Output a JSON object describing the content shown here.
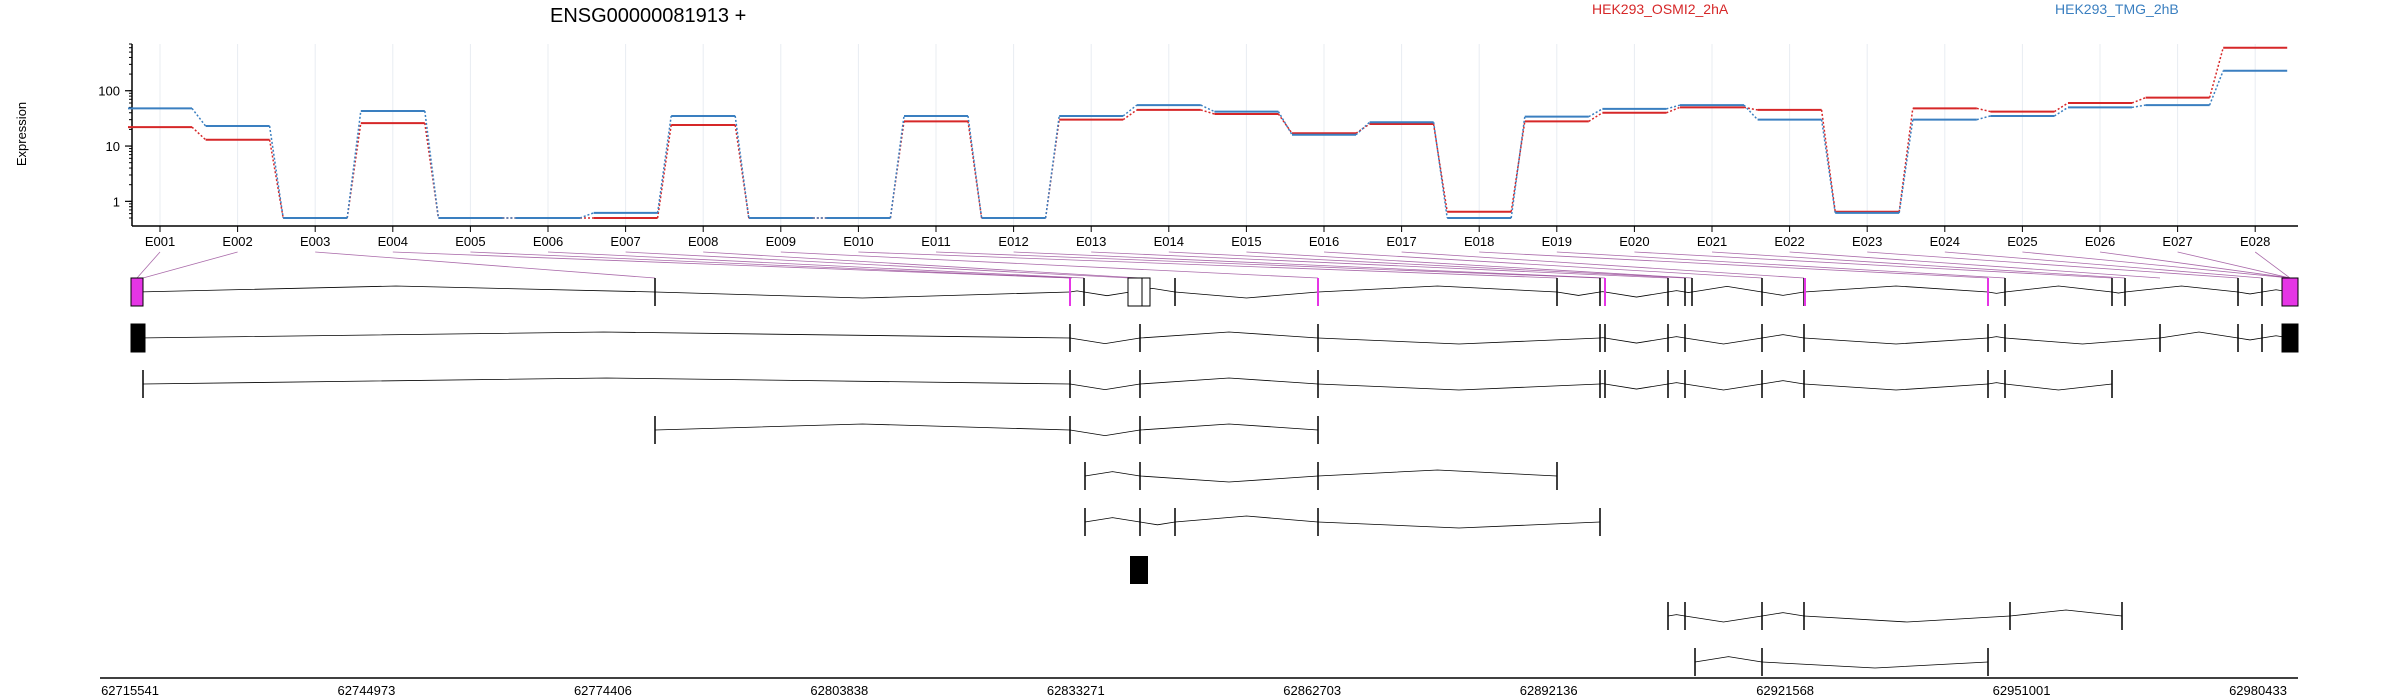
{
  "chart_data": {
    "type": "line",
    "title": "ENSG00000081913 +",
    "ylabel": "Expression",
    "yscale": "log",
    "ylim": [
      0.5,
      700
    ],
    "yticks": [
      {
        "value": 1,
        "label": "1"
      },
      {
        "value": 10,
        "label": "10"
      },
      {
        "value": 100,
        "label": "100"
      }
    ],
    "categories": [
      "E001",
      "E002",
      "E003",
      "E004",
      "E005",
      "E006",
      "E007",
      "E008",
      "E009",
      "E010",
      "E011",
      "E012",
      "E013",
      "E014",
      "E015",
      "E016",
      "E017",
      "E018",
      "E019",
      "E020",
      "E021",
      "E022",
      "E023",
      "E024",
      "E025",
      "E026",
      "E027",
      "E028"
    ],
    "grid": true,
    "legend_position": "top-right",
    "series": [
      {
        "name": "HEK293_OSMI2_2hA",
        "color": "#d62728",
        "values": [
          22,
          13,
          0.5,
          26,
          0.5,
          0.5,
          0.5,
          24,
          0.5,
          0.5,
          28,
          0.5,
          30,
          45,
          38,
          17,
          25,
          0.65,
          28,
          40,
          50,
          45,
          0.65,
          48,
          42,
          60,
          75,
          600
        ]
      },
      {
        "name": "HEK293_TMG_2hB",
        "color": "#3a7fc0",
        "values": [
          48,
          23,
          0.5,
          43,
          0.5,
          0.5,
          0.62,
          35,
          0.5,
          0.5,
          35,
          0.5,
          35,
          55,
          42,
          16,
          27,
          0.5,
          34,
          47,
          55,
          30,
          0.62,
          30,
          35,
          50,
          55,
          230
        ]
      }
    ],
    "genomic_axis": {
      "ticks": [
        "62715541",
        "62744973",
        "62774406",
        "62803838",
        "62833271",
        "62862703",
        "62892136",
        "62921568",
        "62951001",
        "62980433"
      ]
    }
  },
  "colors": {
    "constitutive_exon": "#e535e5",
    "transcript_exon": "#000000",
    "connector_line": "#8e3a8e"
  }
}
